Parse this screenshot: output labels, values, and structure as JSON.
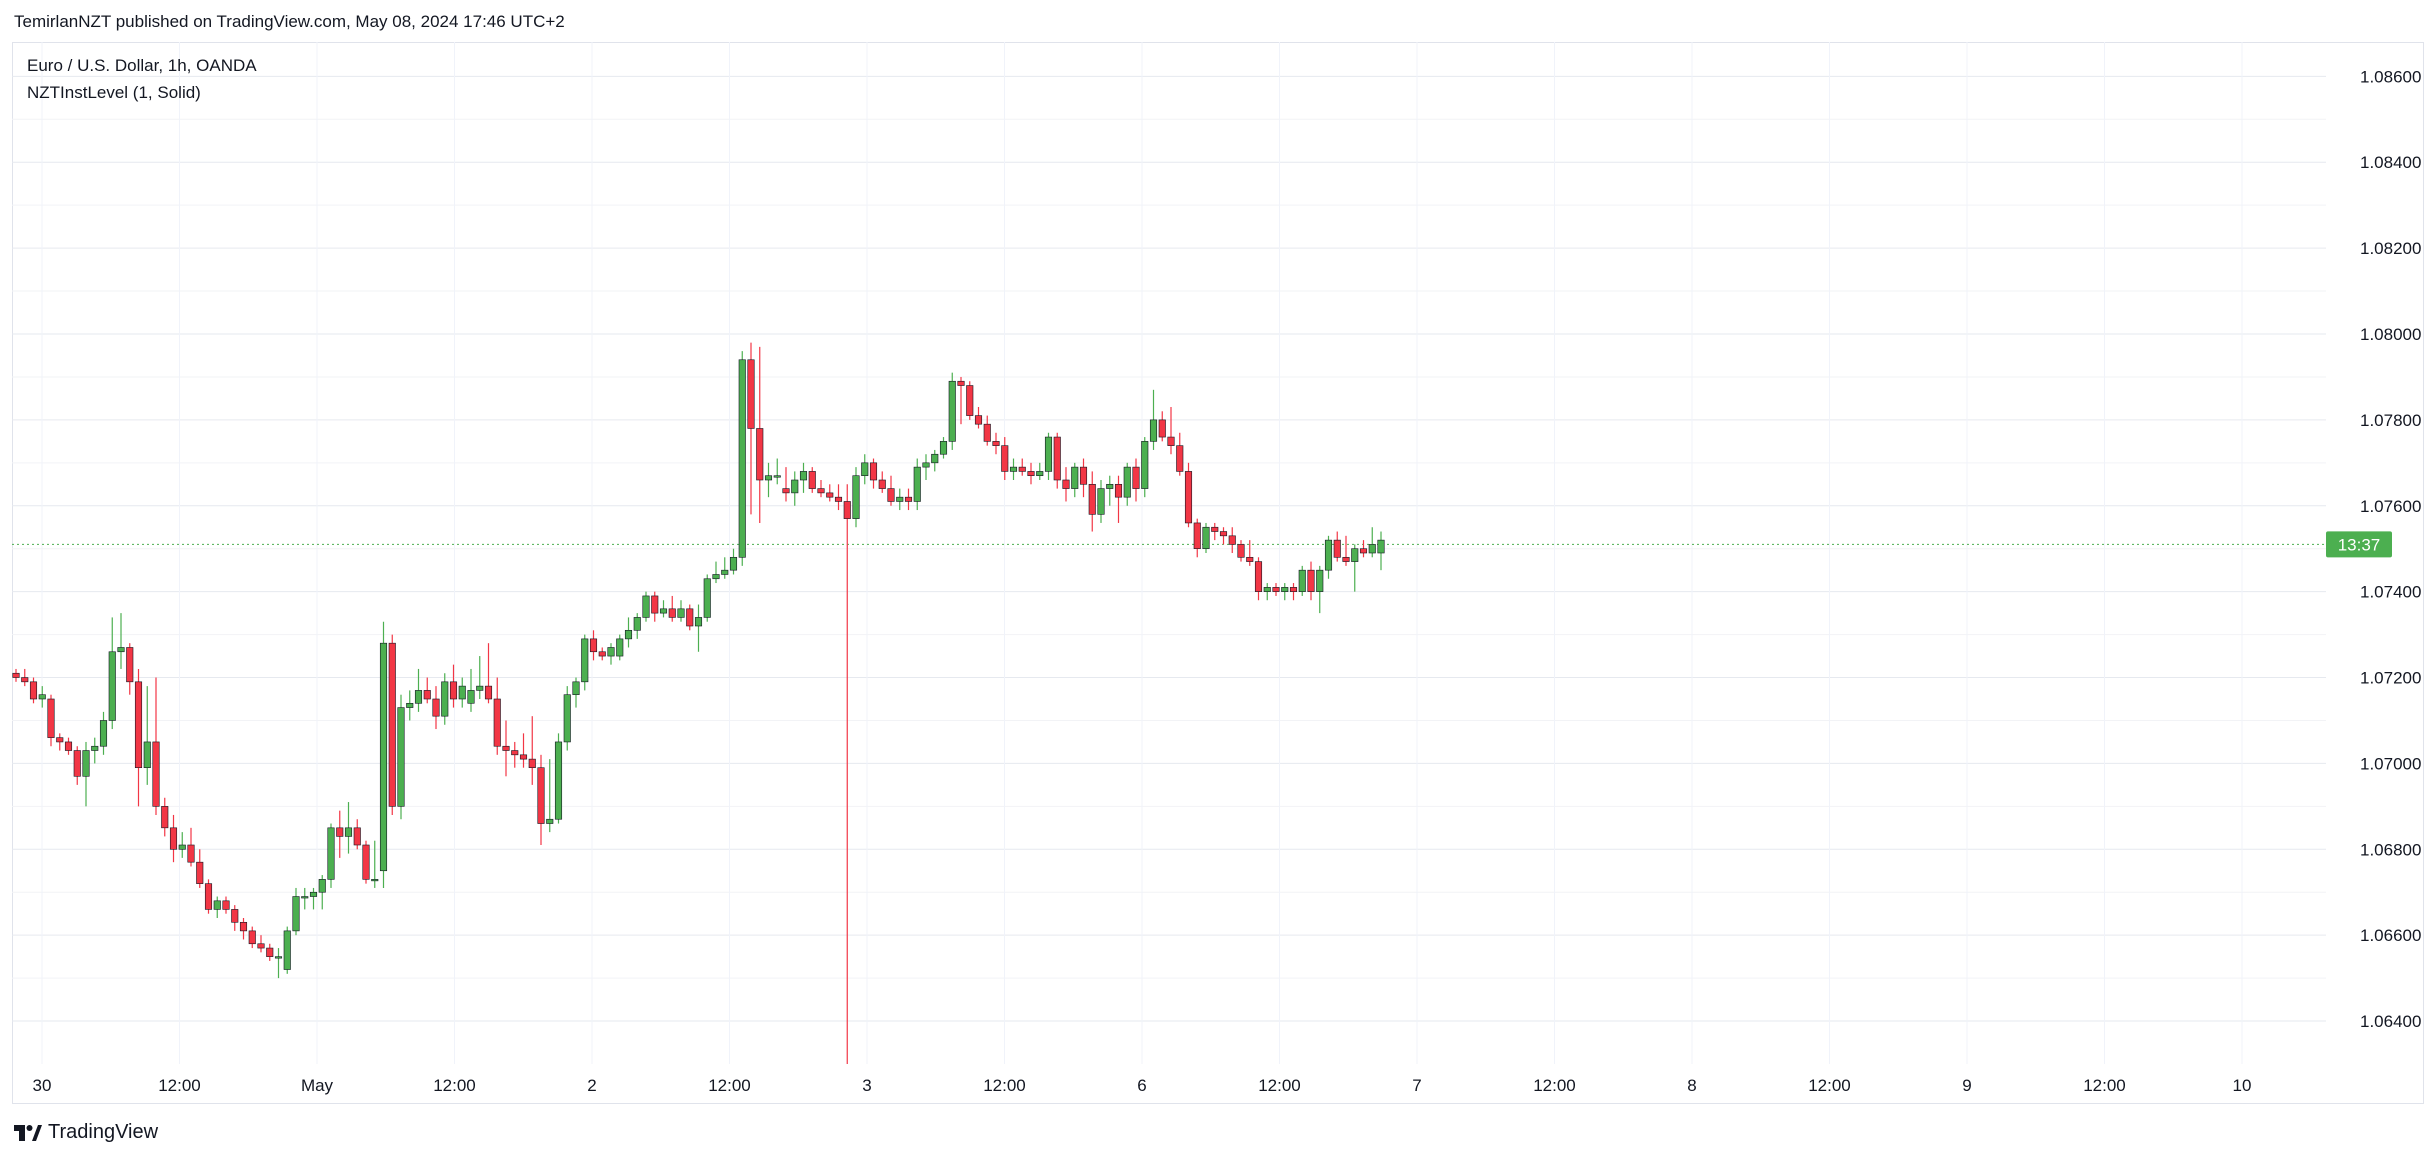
{
  "header": {
    "published": "TemirlanNZT published on TradingView.com, May 08, 2024 17:46 UTC+2"
  },
  "legend": {
    "symbol": "Euro / U.S. Dollar, 1h, OANDA",
    "indicator": "NZTInstLevel (1, Solid)"
  },
  "footer": {
    "brand": "TradingView"
  },
  "colors": {
    "up": "#4caf50",
    "down": "#f23645",
    "grid": "#f0f3fa",
    "level": "#4caf50",
    "axis_text": "#131722"
  },
  "chart_data": {
    "type": "candlestick",
    "title": "Euro / U.S. Dollar, 1h, OANDA",
    "timeframe": "1h",
    "ylim": [
      1.063,
      1.0868
    ],
    "y_ticks": [
      "1.08600",
      "1.08400",
      "1.08200",
      "1.08000",
      "1.07800",
      "1.07600",
      "1.07400",
      "1.07200",
      "1.07000",
      "1.06800",
      "1.06600",
      "1.06400"
    ],
    "x_tick_labels": [
      "30",
      "12:00",
      "May",
      "12:00",
      "2",
      "12:00",
      "3",
      "12:00",
      "6",
      "12:00",
      "7",
      "12:00",
      "8",
      "12:00",
      "9",
      "12:00",
      "10"
    ],
    "grid": true,
    "price_label": "13:37",
    "level_value": 1.0751,
    "candles": [
      [
        1.0721,
        1.0722,
        1.0719,
        1.072
      ],
      [
        1.072,
        1.0722,
        1.0718,
        1.0719
      ],
      [
        1.0719,
        1.072,
        1.0714,
        1.0715
      ],
      [
        1.0715,
        1.0718,
        1.0713,
        1.0716
      ],
      [
        1.0715,
        1.0716,
        1.0704,
        1.0706
      ],
      [
        1.0706,
        1.0707,
        1.0703,
        1.0705
      ],
      [
        1.0705,
        1.0706,
        1.0702,
        1.0703
      ],
      [
        1.0703,
        1.0704,
        1.0695,
        1.0697
      ],
      [
        1.0697,
        1.0705,
        1.069,
        1.0703
      ],
      [
        1.0703,
        1.0706,
        1.07,
        1.0704
      ],
      [
        1.0704,
        1.0712,
        1.0702,
        1.071
      ],
      [
        1.071,
        1.0734,
        1.0708,
        1.0726
      ],
      [
        1.0726,
        1.0735,
        1.0722,
        1.0727
      ],
      [
        1.0727,
        1.0728,
        1.0716,
        1.0719
      ],
      [
        1.0719,
        1.0722,
        1.069,
        1.0699
      ],
      [
        1.0699,
        1.0718,
        1.0695,
        1.0705
      ],
      [
        1.0705,
        1.072,
        1.0688,
        1.069
      ],
      [
        1.069,
        1.0692,
        1.0683,
        1.0685
      ],
      [
        1.0685,
        1.0688,
        1.0677,
        1.068
      ],
      [
        1.068,
        1.0684,
        1.0678,
        1.0681
      ],
      [
        1.0681,
        1.0685,
        1.0676,
        1.0677
      ],
      [
        1.0677,
        1.068,
        1.0671,
        1.0672
      ],
      [
        1.0672,
        1.0673,
        1.0665,
        1.0666
      ],
      [
        1.0666,
        1.0669,
        1.0664,
        1.0668
      ],
      [
        1.0668,
        1.0669,
        1.0665,
        1.0666
      ],
      [
        1.0666,
        1.0667,
        1.0661,
        1.0663
      ],
      [
        1.0663,
        1.0664,
        1.0659,
        1.0661
      ],
      [
        1.0661,
        1.0662,
        1.0657,
        1.0658
      ],
      [
        1.0658,
        1.066,
        1.0656,
        1.0657
      ],
      [
        1.0657,
        1.0658,
        1.0654,
        1.0655
      ],
      [
        1.0655,
        1.0657,
        1.065,
        1.0655
      ],
      [
        1.0652,
        1.0662,
        1.0651,
        1.0661
      ],
      [
        1.0661,
        1.0671,
        1.066,
        1.0669
      ],
      [
        1.0669,
        1.0671,
        1.0666,
        1.0669
      ],
      [
        1.0669,
        1.0671,
        1.0666,
        1.067
      ],
      [
        1.067,
        1.0674,
        1.0666,
        1.0673
      ],
      [
        1.0673,
        1.0686,
        1.0671,
        1.0685
      ],
      [
        1.0685,
        1.0689,
        1.0678,
        1.0683
      ],
      [
        1.0683,
        1.0691,
        1.0679,
        1.0685
      ],
      [
        1.0685,
        1.0687,
        1.068,
        1.0681
      ],
      [
        1.0681,
        1.0682,
        1.0672,
        1.0673
      ],
      [
        1.0673,
        1.0682,
        1.0671,
        1.0673
      ],
      [
        1.0675,
        1.0733,
        1.0671,
        1.0728
      ],
      [
        1.0728,
        1.073,
        1.0688,
        1.069
      ],
      [
        1.069,
        1.0716,
        1.0687,
        1.0713
      ],
      [
        1.0713,
        1.0717,
        1.071,
        1.0714
      ],
      [
        1.0714,
        1.0722,
        1.0712,
        1.0717
      ],
      [
        1.0717,
        1.072,
        1.0714,
        1.0715
      ],
      [
        1.0715,
        1.0718,
        1.0708,
        1.0711
      ],
      [
        1.0711,
        1.0721,
        1.0709,
        1.0719
      ],
      [
        1.0719,
        1.0723,
        1.0713,
        1.0715
      ],
      [
        1.0715,
        1.072,
        1.0713,
        1.0718
      ],
      [
        1.0714,
        1.0722,
        1.0712,
        1.0717
      ],
      [
        1.0717,
        1.0725,
        1.0715,
        1.0718
      ],
      [
        1.0718,
        1.0728,
        1.0714,
        1.0715
      ],
      [
        1.0715,
        1.072,
        1.0702,
        1.0704
      ],
      [
        1.0704,
        1.071,
        1.0697,
        1.0703
      ],
      [
        1.0703,
        1.0705,
        1.0699,
        1.0702
      ],
      [
        1.0702,
        1.0707,
        1.0699,
        1.0701
      ],
      [
        1.0701,
        1.0711,
        1.0695,
        1.0699
      ],
      [
        1.0699,
        1.0702,
        1.0681,
        1.0686
      ],
      [
        1.0686,
        1.0701,
        1.0684,
        1.0687
      ],
      [
        1.0687,
        1.0707,
        1.0686,
        1.0705
      ],
      [
        1.0705,
        1.0718,
        1.0703,
        1.0716
      ],
      [
        1.0716,
        1.072,
        1.0713,
        1.0719
      ],
      [
        1.0719,
        1.073,
        1.0717,
        1.0729
      ],
      [
        1.0729,
        1.0731,
        1.0724,
        1.0726
      ],
      [
        1.0726,
        1.0727,
        1.0724,
        1.0725
      ],
      [
        1.0725,
        1.0728,
        1.0723,
        1.0727
      ],
      [
        1.0725,
        1.073,
        1.0724,
        1.0729
      ],
      [
        1.0729,
        1.0734,
        1.0727,
        1.0731
      ],
      [
        1.0731,
        1.0735,
        1.0729,
        1.0734
      ],
      [
        1.0734,
        1.074,
        1.0733,
        1.0739
      ],
      [
        1.0739,
        1.074,
        1.0733,
        1.0735
      ],
      [
        1.0735,
        1.0738,
        1.0734,
        1.0736
      ],
      [
        1.0736,
        1.0739,
        1.0733,
        1.0734
      ],
      [
        1.0734,
        1.0738,
        1.0733,
        1.0736
      ],
      [
        1.0736,
        1.0737,
        1.0731,
        1.0732
      ],
      [
        1.0732,
        1.0737,
        1.0726,
        1.0734
      ],
      [
        1.0734,
        1.0744,
        1.0733,
        1.0743
      ],
      [
        1.0743,
        1.0747,
        1.0742,
        1.0744
      ],
      [
        1.0744,
        1.0748,
        1.0743,
        1.0745
      ],
      [
        1.0745,
        1.075,
        1.0744,
        1.0748
      ],
      [
        1.0748,
        1.0796,
        1.0746,
        1.0794
      ],
      [
        1.0794,
        1.0798,
        1.0758,
        1.0778
      ],
      [
        1.0778,
        1.0797,
        1.0756,
        1.0766
      ],
      [
        1.0766,
        1.077,
        1.0762,
        1.0767
      ],
      [
        1.0767,
        1.0771,
        1.0765,
        1.0767
      ],
      [
        1.0764,
        1.0769,
        1.0761,
        1.0763
      ],
      [
        1.0763,
        1.0768,
        1.076,
        1.0766
      ],
      [
        1.0766,
        1.077,
        1.0763,
        1.0768
      ],
      [
        1.0768,
        1.0769,
        1.0763,
        1.0764
      ],
      [
        1.0764,
        1.0766,
        1.0762,
        1.0763
      ],
      [
        1.0763,
        1.0765,
        1.0761,
        1.0762
      ],
      [
        1.0762,
        1.0765,
        1.0759,
        1.0761
      ],
      [
        1.0761,
        1.0765,
        1.0557,
        1.0757
      ],
      [
        1.0757,
        1.0769,
        1.0755,
        1.0767
      ],
      [
        1.0767,
        1.0772,
        1.0765,
        1.077
      ],
      [
        1.077,
        1.0771,
        1.0764,
        1.0766
      ],
      [
        1.0766,
        1.0768,
        1.0763,
        1.0764
      ],
      [
        1.0764,
        1.0767,
        1.076,
        1.0761
      ],
      [
        1.0761,
        1.0764,
        1.0759,
        1.0762
      ],
      [
        1.0762,
        1.0764,
        1.0759,
        1.0761
      ],
      [
        1.0761,
        1.0771,
        1.0759,
        1.0769
      ],
      [
        1.0769,
        1.0772,
        1.0766,
        1.077
      ],
      [
        1.077,
        1.0773,
        1.0768,
        1.0772
      ],
      [
        1.0772,
        1.0776,
        1.0771,
        1.0775
      ],
      [
        1.0775,
        1.0791,
        1.0773,
        1.0789
      ],
      [
        1.0789,
        1.079,
        1.0779,
        1.0788
      ],
      [
        1.0788,
        1.0789,
        1.078,
        1.0781
      ],
      [
        1.0781,
        1.0783,
        1.0778,
        1.0779
      ],
      [
        1.0779,
        1.0781,
        1.0774,
        1.0775
      ],
      [
        1.0775,
        1.0777,
        1.0772,
        1.0774
      ],
      [
        1.0774,
        1.0776,
        1.0766,
        1.0768
      ],
      [
        1.0768,
        1.0771,
        1.0766,
        1.0769
      ],
      [
        1.0769,
        1.0771,
        1.0767,
        1.0768
      ],
      [
        1.0768,
        1.077,
        1.0765,
        1.0767
      ],
      [
        1.0767,
        1.077,
        1.0766,
        1.0768
      ],
      [
        1.0768,
        1.0777,
        1.0766,
        1.0776
      ],
      [
        1.0776,
        1.0777,
        1.0764,
        1.0766
      ],
      [
        1.0766,
        1.0769,
        1.0761,
        1.0764
      ],
      [
        1.0764,
        1.077,
        1.0762,
        1.0769
      ],
      [
        1.0769,
        1.0771,
        1.0762,
        1.0765
      ],
      [
        1.0765,
        1.0768,
        1.0754,
        1.0758
      ],
      [
        1.0758,
        1.0766,
        1.0756,
        1.0764
      ],
      [
        1.0764,
        1.0767,
        1.076,
        1.0765
      ],
      [
        1.0765,
        1.0767,
        1.0756,
        1.0762
      ],
      [
        1.0762,
        1.077,
        1.076,
        1.0769
      ],
      [
        1.0769,
        1.0771,
        1.0761,
        1.0764
      ],
      [
        1.0764,
        1.0776,
        1.0762,
        1.0775
      ],
      [
        1.0775,
        1.0787,
        1.0773,
        1.078
      ],
      [
        1.078,
        1.0782,
        1.0775,
        1.0776
      ],
      [
        1.0776,
        1.0783,
        1.0772,
        1.0774
      ],
      [
        1.0774,
        1.0777,
        1.0767,
        1.0768
      ],
      [
        1.0768,
        1.077,
        1.0755,
        1.0756
      ],
      [
        1.0756,
        1.0757,
        1.0748,
        1.075
      ],
      [
        1.075,
        1.0756,
        1.0749,
        1.0755
      ],
      [
        1.0755,
        1.0756,
        1.0752,
        1.0754
      ],
      [
        1.0754,
        1.0755,
        1.0751,
        1.0753
      ],
      [
        1.0753,
        1.0755,
        1.0749,
        1.0751
      ],
      [
        1.0751,
        1.0752,
        1.0747,
        1.0748
      ],
      [
        1.0748,
        1.0752,
        1.0746,
        1.0747
      ],
      [
        1.0747,
        1.0748,
        1.0738,
        1.074
      ],
      [
        1.074,
        1.0742,
        1.0738,
        1.0741
      ],
      [
        1.0741,
        1.0742,
        1.0739,
        1.074
      ],
      [
        1.074,
        1.0742,
        1.0738,
        1.0741
      ],
      [
        1.0741,
        1.0742,
        1.0738,
        1.074
      ],
      [
        1.074,
        1.0746,
        1.0739,
        1.0745
      ],
      [
        1.0745,
        1.0747,
        1.0738,
        1.074
      ],
      [
        1.074,
        1.0746,
        1.0735,
        1.0745
      ],
      [
        1.0745,
        1.0753,
        1.0743,
        1.0752
      ],
      [
        1.0752,
        1.0754,
        1.0747,
        1.0748
      ],
      [
        1.0748,
        1.0753,
        1.0746,
        1.0747
      ],
      [
        1.0747,
        1.0751,
        1.074,
        1.075
      ],
      [
        1.075,
        1.0752,
        1.0748,
        1.0749
      ],
      [
        1.0749,
        1.0755,
        1.0748,
        1.0751
      ],
      [
        1.0749,
        1.0754,
        1.0745,
        1.0752
      ]
    ]
  }
}
